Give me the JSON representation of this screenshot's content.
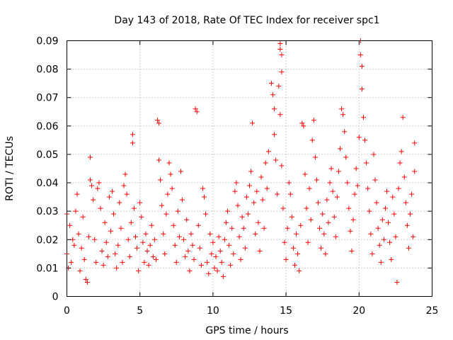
{
  "chart_data": {
    "type": "scatter",
    "title": "Day 143 of 2018, Rate Of TEC Index for receiver spc1",
    "xlabel": "GPS time / hours",
    "ylabel": "ROTI / TECUs",
    "xlim": [
      0,
      25
    ],
    "ylim": [
      0,
      0.09
    ],
    "x_ticks": [
      0,
      5,
      10,
      15,
      20,
      25
    ],
    "y_ticks": [
      0,
      0.01,
      0.02,
      0.03,
      0.04,
      0.05,
      0.06,
      0.07,
      0.08,
      0.09
    ],
    "x_tick_labels": [
      "0",
      "5",
      "10",
      "15",
      "20",
      "25"
    ],
    "y_tick_labels": [
      "0",
      "0.01",
      "0.02",
      "0.03",
      "0.04",
      "0.05",
      "0.06",
      "0.07",
      "0.08",
      "0.09"
    ],
    "grid": true,
    "marker": "+",
    "series": [
      {
        "name": "ROTI",
        "color": "#ff0000",
        "points": [
          [
            0.0,
            0.029
          ],
          [
            0.0,
            0.015
          ],
          [
            0.1,
            0.01
          ],
          [
            0.2,
            0.025
          ],
          [
            0.3,
            0.012
          ],
          [
            0.4,
            0.02
          ],
          [
            0.5,
            0.018
          ],
          [
            0.6,
            0.03
          ],
          [
            0.7,
            0.036
          ],
          [
            0.8,
            0.022
          ],
          [
            0.9,
            0.009
          ],
          [
            1.0,
            0.017
          ],
          [
            1.1,
            0.028
          ],
          [
            1.2,
            0.013
          ],
          [
            1.3,
            0.006
          ],
          [
            1.4,
            0.005
          ],
          [
            1.5,
            0.021
          ],
          [
            1.6,
            0.049
          ],
          [
            1.6,
            0.041
          ],
          [
            1.7,
            0.039
          ],
          [
            1.8,
            0.034
          ],
          [
            1.9,
            0.02
          ],
          [
            2.0,
            0.012
          ],
          [
            2.1,
            0.038
          ],
          [
            2.2,
            0.04
          ],
          [
            2.3,
            0.031
          ],
          [
            2.4,
            0.016
          ],
          [
            2.5,
            0.011
          ],
          [
            2.6,
            0.026
          ],
          [
            2.7,
            0.019
          ],
          [
            2.8,
            0.014
          ],
          [
            2.9,
            0.035
          ],
          [
            3.0,
            0.023
          ],
          [
            3.1,
            0.037
          ],
          [
            3.2,
            0.029
          ],
          [
            3.3,
            0.015
          ],
          [
            3.4,
            0.01
          ],
          [
            3.5,
            0.018
          ],
          [
            3.6,
            0.033
          ],
          [
            3.7,
            0.024
          ],
          [
            3.8,
            0.012
          ],
          [
            3.9,
            0.039
          ],
          [
            4.0,
            0.043
          ],
          [
            4.1,
            0.036
          ],
          [
            4.2,
            0.02
          ],
          [
            4.3,
            0.014
          ],
          [
            4.4,
            0.026
          ],
          [
            4.5,
            0.057
          ],
          [
            4.5,
            0.054
          ],
          [
            4.6,
            0.031
          ],
          [
            4.7,
            0.021
          ],
          [
            4.8,
            0.017
          ],
          [
            4.9,
            0.009
          ],
          [
            5.0,
            0.033
          ],
          [
            5.1,
            0.028
          ],
          [
            5.2,
            0.019
          ],
          [
            5.3,
            0.012
          ],
          [
            5.4,
            0.022
          ],
          [
            5.5,
            0.016
          ],
          [
            5.6,
            0.011
          ],
          [
            5.7,
            0.018
          ],
          [
            5.8,
            0.025
          ],
          [
            5.9,
            0.014
          ],
          [
            6.0,
            0.02
          ],
          [
            6.1,
            0.013
          ],
          [
            6.2,
            0.062
          ],
          [
            6.3,
            0.061
          ],
          [
            6.3,
            0.048
          ],
          [
            6.4,
            0.041
          ],
          [
            6.5,
            0.032
          ],
          [
            6.6,
            0.022
          ],
          [
            6.7,
            0.015
          ],
          [
            6.8,
            0.029
          ],
          [
            6.9,
            0.036
          ],
          [
            7.0,
            0.047
          ],
          [
            7.1,
            0.043
          ],
          [
            7.2,
            0.038
          ],
          [
            7.3,
            0.025
          ],
          [
            7.4,
            0.018
          ],
          [
            7.5,
            0.012
          ],
          [
            7.6,
            0.03
          ],
          [
            7.7,
            0.021
          ],
          [
            7.8,
            0.044
          ],
          [
            7.9,
            0.034
          ],
          [
            8.0,
            0.02
          ],
          [
            8.1,
            0.014
          ],
          [
            8.2,
            0.027
          ],
          [
            8.3,
            0.016
          ],
          [
            8.4,
            0.009
          ],
          [
            8.5,
            0.022
          ],
          [
            8.6,
            0.018
          ],
          [
            8.7,
            0.013
          ],
          [
            8.8,
            0.066
          ],
          [
            8.9,
            0.065
          ],
          [
            9.0,
            0.025
          ],
          [
            9.1,
            0.017
          ],
          [
            9.2,
            0.011
          ],
          [
            9.3,
            0.038
          ],
          [
            9.4,
            0.035
          ],
          [
            9.5,
            0.029
          ],
          [
            9.6,
            0.012
          ],
          [
            9.7,
            0.008
          ],
          [
            9.8,
            0.022
          ],
          [
            9.9,
            0.015
          ],
          [
            10.0,
            0.019
          ],
          [
            10.1,
            0.01
          ],
          [
            10.2,
            0.014
          ],
          [
            10.3,
            0.009
          ],
          [
            10.4,
            0.021
          ],
          [
            10.5,
            0.016
          ],
          [
            10.6,
            0.012
          ],
          [
            10.7,
            0.007
          ],
          [
            10.8,
            0.02
          ],
          [
            10.9,
            0.026
          ],
          [
            11.0,
            0.03
          ],
          [
            11.1,
            0.018
          ],
          [
            11.2,
            0.011
          ],
          [
            11.3,
            0.024
          ],
          [
            11.4,
            0.015
          ],
          [
            11.5,
            0.037
          ],
          [
            11.6,
            0.04
          ],
          [
            11.7,
            0.032
          ],
          [
            11.8,
            0.021
          ],
          [
            11.9,
            0.013
          ],
          [
            12.0,
            0.028
          ],
          [
            12.1,
            0.024
          ],
          [
            12.2,
            0.017
          ],
          [
            12.3,
            0.035
          ],
          [
            12.4,
            0.029
          ],
          [
            12.5,
            0.039
          ],
          [
            12.6,
            0.044
          ],
          [
            12.7,
            0.061
          ],
          [
            12.8,
            0.033
          ],
          [
            12.9,
            0.022
          ],
          [
            13.0,
            0.037
          ],
          [
            13.1,
            0.026
          ],
          [
            13.2,
            0.016
          ],
          [
            13.3,
            0.042
          ],
          [
            13.4,
            0.034
          ],
          [
            13.5,
            0.024
          ],
          [
            13.6,
            0.047
          ],
          [
            13.7,
            0.038
          ],
          [
            13.8,
            0.051
          ],
          [
            14.0,
            0.075
          ],
          [
            14.1,
            0.071
          ],
          [
            14.2,
            0.066
          ],
          [
            14.2,
            0.057
          ],
          [
            14.3,
            0.048
          ],
          [
            14.4,
            0.036
          ],
          [
            14.5,
            0.074
          ],
          [
            14.6,
            0.089
          ],
          [
            14.6,
            0.087
          ],
          [
            14.7,
            0.085
          ],
          [
            14.7,
            0.079
          ],
          [
            14.6,
            0.064
          ],
          [
            14.7,
            0.046
          ],
          [
            14.8,
            0.031
          ],
          [
            14.9,
            0.019
          ],
          [
            15.0,
            0.013
          ],
          [
            15.1,
            0.024
          ],
          [
            15.2,
            0.04
          ],
          [
            15.3,
            0.036
          ],
          [
            15.4,
            0.028
          ],
          [
            15.5,
            0.017
          ],
          [
            15.6,
            0.011
          ],
          [
            15.7,
            0.022
          ],
          [
            15.8,
            0.015
          ],
          [
            15.9,
            0.009
          ],
          [
            16.0,
            0.025
          ],
          [
            16.1,
            0.061
          ],
          [
            16.2,
            0.06
          ],
          [
            16.3,
            0.043
          ],
          [
            16.4,
            0.031
          ],
          [
            16.5,
            0.019
          ],
          [
            16.6,
            0.038
          ],
          [
            16.7,
            0.027
          ],
          [
            16.8,
            0.055
          ],
          [
            16.9,
            0.062
          ],
          [
            17.0,
            0.049
          ],
          [
            17.1,
            0.041
          ],
          [
            17.2,
            0.033
          ],
          [
            17.3,
            0.024
          ],
          [
            17.4,
            0.017
          ],
          [
            17.5,
            0.029
          ],
          [
            17.6,
            0.022
          ],
          [
            17.7,
            0.015
          ],
          [
            17.8,
            0.034
          ],
          [
            17.9,
            0.026
          ],
          [
            18.0,
            0.04
          ],
          [
            18.1,
            0.045
          ],
          [
            18.2,
            0.037
          ],
          [
            18.3,
            0.028
          ],
          [
            18.4,
            0.021
          ],
          [
            18.5,
            0.035
          ],
          [
            18.6,
            0.044
          ],
          [
            18.7,
            0.052
          ],
          [
            18.8,
            0.066
          ],
          [
            18.9,
            0.064
          ],
          [
            19.0,
            0.058
          ],
          [
            19.1,
            0.049
          ],
          [
            19.2,
            0.04
          ],
          [
            19.3,
            0.031
          ],
          [
            19.4,
            0.023
          ],
          [
            19.5,
            0.016
          ],
          [
            19.6,
            0.027
          ],
          [
            19.7,
            0.036
          ],
          [
            19.8,
            0.045
          ],
          [
            19.9,
            0.039
          ],
          [
            20.0,
            0.056
          ],
          [
            20.1,
            0.09
          ],
          [
            20.1,
            0.085
          ],
          [
            20.2,
            0.081
          ],
          [
            20.2,
            0.073
          ],
          [
            20.3,
            0.063
          ],
          [
            20.4,
            0.055
          ],
          [
            20.5,
            0.047
          ],
          [
            20.6,
            0.038
          ],
          [
            20.7,
            0.03
          ],
          [
            20.8,
            0.022
          ],
          [
            20.9,
            0.015
          ],
          [
            21.0,
            0.05
          ],
          [
            21.1,
            0.041
          ],
          [
            21.2,
            0.033
          ],
          [
            21.3,
            0.024
          ],
          [
            21.4,
            0.018
          ],
          [
            21.5,
            0.012
          ],
          [
            21.6,
            0.027
          ],
          [
            21.7,
            0.02
          ],
          [
            21.8,
            0.031
          ],
          [
            21.9,
            0.037
          ],
          [
            22.0,
            0.026
          ],
          [
            22.1,
            0.019
          ],
          [
            22.2,
            0.013
          ],
          [
            22.3,
            0.035
          ],
          [
            22.4,
            0.029
          ],
          [
            22.5,
            0.021
          ],
          [
            22.6,
            0.005
          ],
          [
            22.7,
            0.038
          ],
          [
            22.8,
            0.047
          ],
          [
            22.9,
            0.051
          ],
          [
            23.0,
            0.063
          ],
          [
            23.1,
            0.042
          ],
          [
            23.2,
            0.033
          ],
          [
            23.3,
            0.025
          ],
          [
            23.4,
            0.017
          ],
          [
            23.5,
            0.029
          ],
          [
            23.6,
            0.036
          ],
          [
            23.7,
            0.021
          ],
          [
            23.8,
            0.054
          ],
          [
            23.8,
            0.044
          ]
        ]
      }
    ]
  }
}
